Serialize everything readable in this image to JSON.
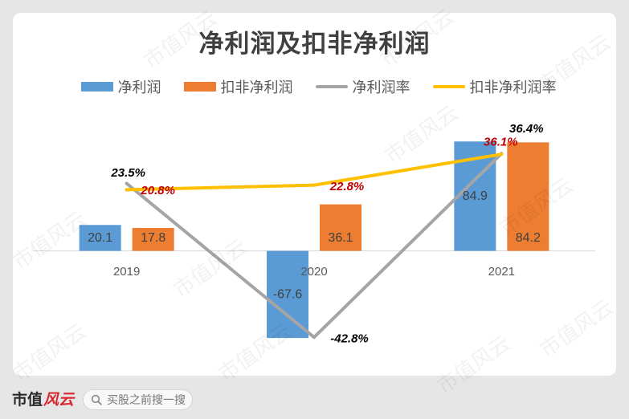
{
  "chart_data": {
    "type": "bar",
    "title": "净利润及扣非净利润",
    "categories": [
      "2019",
      "2020",
      "2021"
    ],
    "series": [
      {
        "name": "净利润",
        "type": "bar",
        "values": [
          20.1,
          -67.6,
          84.9
        ],
        "labels": [
          "20.1",
          "-67.6",
          "84.9"
        ],
        "color": "#5b9bd5",
        "label_color": "#404040"
      },
      {
        "name": "扣非净利润",
        "type": "bar",
        "values": [
          17.8,
          36.1,
          84.2
        ],
        "labels": [
          "17.8",
          "36.1",
          "84.2"
        ],
        "color": "#ed7d31",
        "label_color": "#404040"
      },
      {
        "name": "净利润率",
        "type": "line",
        "values": [
          23.5,
          -42.8,
          36.4
        ],
        "labels": [
          "23.5%",
          "-42.8%",
          "36.4%"
        ],
        "color": "#a5a5a5",
        "label_color": "#000000"
      },
      {
        "name": "扣非净利润率",
        "type": "line",
        "values": [
          20.8,
          22.8,
          36.1
        ],
        "labels": [
          "20.8%",
          "22.8%",
          "36.1%"
        ],
        "color": "#ffc000",
        "label_color": "#c00000"
      }
    ],
    "ylim": [
      -80,
      100
    ],
    "y2lim": [
      -50,
      50
    ],
    "grid": false,
    "legend": "top"
  },
  "watermark": "市值风云",
  "footer": {
    "logo_part1": "市值",
    "logo_part2": "风云",
    "logo_color": "#d8262e",
    "search_icon": "search-icon",
    "search_hint": "买股之前搜一搜"
  }
}
